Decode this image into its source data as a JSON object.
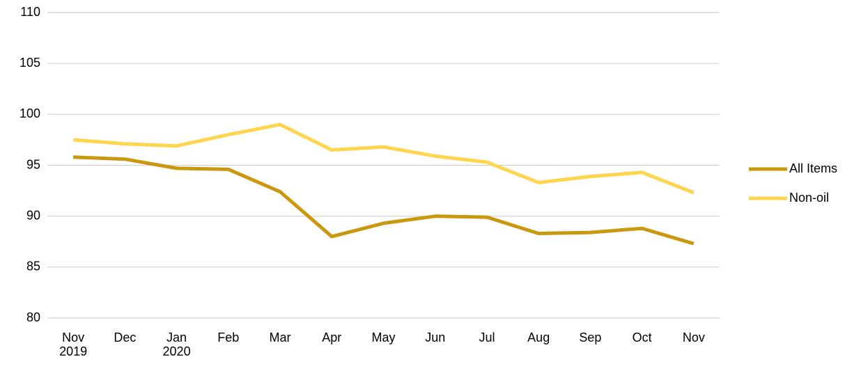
{
  "chart_data": {
    "type": "line",
    "categories": [
      "Nov 2019",
      "Dec",
      "Jan 2020",
      "Feb",
      "Mar",
      "Apr",
      "May",
      "Jun",
      "Jul",
      "Aug",
      "Sep",
      "Oct",
      "Nov"
    ],
    "series": [
      {
        "name": "All Items",
        "color": "#c9980f",
        "values": [
          95.8,
          95.6,
          94.7,
          94.6,
          92.4,
          88.0,
          89.3,
          90.0,
          89.9,
          88.3,
          88.4,
          88.8,
          87.3
        ]
      },
      {
        "name": "Non-oil",
        "color": "#ffd54f",
        "values": [
          97.5,
          97.1,
          96.9,
          98.0,
          99.0,
          96.5,
          96.8,
          95.9,
          95.3,
          93.3,
          93.9,
          94.3,
          92.3
        ]
      }
    ],
    "ylim": [
      80,
      110
    ],
    "yticks": [
      80,
      85,
      90,
      95,
      100,
      105,
      110
    ],
    "grid": true,
    "legend": "right"
  }
}
